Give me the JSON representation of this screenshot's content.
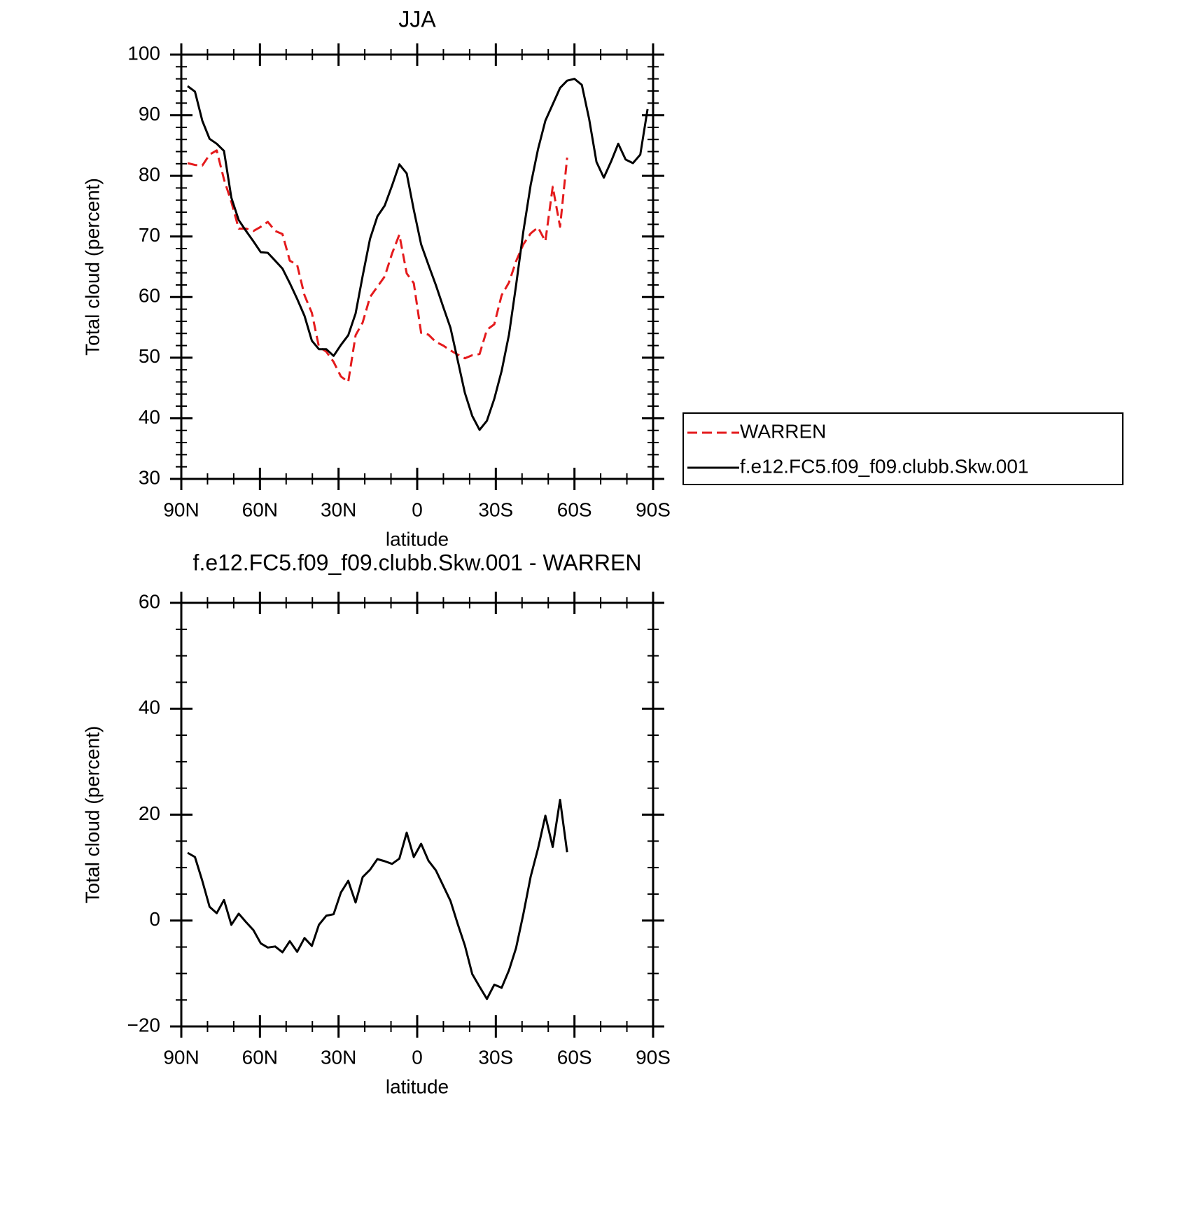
{
  "chart_data": [
    {
      "type": "line",
      "title": "JJA",
      "xlabel": "latitude",
      "ylabel": "Total cloud (percent)",
      "x": [
        87.6,
        84.8,
        82.0,
        79.2,
        76.5,
        73.7,
        70.9,
        68.1,
        65.3,
        62.5,
        59.7,
        57.0,
        54.2,
        51.4,
        48.6,
        45.8,
        43.0,
        40.2,
        37.5,
        34.7,
        31.9,
        29.1,
        26.3,
        23.5,
        20.8,
        18.0,
        15.2,
        12.4,
        9.6,
        6.8,
        4.0,
        1.3,
        -1.5,
        -4.3,
        -7.1,
        -9.9,
        -12.7,
        -15.5,
        -18.2,
        -21.0,
        -23.8,
        -26.6,
        -29.4,
        -32.2,
        -35.0,
        -37.7,
        -40.5,
        -43.3,
        -46.1,
        -48.9,
        -51.7,
        -54.5,
        -57.2,
        -60.0,
        -62.8,
        -65.6,
        -68.4,
        -71.2,
        -74.0,
        -76.7,
        -79.5,
        -82.3,
        -85.1,
        -87.9
      ],
      "series": [
        {
          "name": "WARREN",
          "color": "#e41a1c",
          "dash": true,
          "values": [
            82.1,
            81.8,
            81.7,
            83.5,
            84.2,
            79.4,
            75.7,
            71.3,
            71.3,
            70.9,
            71.6,
            72.4,
            70.9,
            70.4,
            66.0,
            65.3,
            60.3,
            57.4,
            51.8,
            51.0,
            49.3,
            46.9,
            46.0,
            53.7,
            55.8,
            60.0,
            61.7,
            63.4,
            67.2,
            70.3,
            63.9,
            62.3,
            54.1,
            53.8,
            52.6,
            52.0,
            51.2,
            50.5,
            49.9,
            50.4,
            50.6,
            54.6,
            55.5,
            60.3,
            62.4,
            65.9,
            68.7,
            70.5,
            71.5,
            69.2,
            78.2,
            71.6,
            83.0,
            null,
            null,
            null,
            null,
            null,
            null,
            null,
            null,
            null,
            null,
            null
          ]
        },
        {
          "name": "f.e12.FC5.f09_f09.clubb.Skw.001",
          "color": "#000000",
          "dash": false,
          "values": [
            94.8,
            93.9,
            89.1,
            86.1,
            85.3,
            84.1,
            76.4,
            72.7,
            70.9,
            69.2,
            67.4,
            67.3,
            66.0,
            64.7,
            62.3,
            59.7,
            56.9,
            52.8,
            51.4,
            51.4,
            50.3,
            52.1,
            53.7,
            57.3,
            63.5,
            69.6,
            73.3,
            75.1,
            78.4,
            81.9,
            80.4,
            74.4,
            68.7,
            65.3,
            62.0,
            58.4,
            54.9,
            49.5,
            44.2,
            40.4,
            38.1,
            39.6,
            43.2,
            47.8,
            53.8,
            61.9,
            70.8,
            78.5,
            84.4,
            89.1,
            91.8,
            94.5,
            95.7,
            96.0,
            95.0,
            89.4,
            82.3,
            79.7,
            82.4,
            85.3,
            82.7,
            82.1,
            83.5,
            91.0
          ]
        }
      ],
      "xlim": [
        90,
        -90
      ],
      "xticks": [
        {
          "value": 90,
          "label": "90N"
        },
        {
          "value": 60,
          "label": "60N"
        },
        {
          "value": 30,
          "label": "30N"
        },
        0,
        {
          "value": -30,
          "label": "30S"
        },
        {
          "value": -60,
          "label": "60S"
        },
        {
          "value": -90,
          "label": "90S"
        }
      ],
      "xminor": 3,
      "ylim": [
        30,
        100
      ],
      "yticks": [
        30,
        40,
        50,
        60,
        70,
        80,
        90,
        100
      ],
      "yminor": 5,
      "legend": "right"
    },
    {
      "type": "line",
      "title": "f.e12.FC5.f09_f09.clubb.Skw.001 - WARREN",
      "xlabel": "latitude",
      "ylabel": "Total cloud (percent)",
      "x": [
        87.6,
        84.8,
        82.0,
        79.2,
        76.5,
        73.7,
        70.9,
        68.1,
        65.3,
        62.5,
        59.7,
        57.0,
        54.2,
        51.4,
        48.6,
        45.8,
        43.0,
        40.2,
        37.5,
        34.7,
        31.9,
        29.1,
        26.3,
        23.5,
        20.8,
        18.0,
        15.2,
        12.4,
        9.6,
        6.8,
        4.0,
        1.3,
        -1.5,
        -4.3,
        -7.1,
        -9.9,
        -12.7,
        -15.5,
        -18.2,
        -21.0,
        -23.8,
        -26.6,
        -29.4,
        -32.2,
        -35.0,
        -37.7,
        -40.5,
        -43.3,
        -46.1,
        -48.9,
        -51.7,
        -54.5,
        -57.2,
        -60.0,
        -62.8,
        -65.6,
        -68.4,
        -71.2,
        -74.0,
        -76.7,
        -79.5,
        -82.3,
        -85.1,
        -87.9
      ],
      "series": [
        {
          "color": "#000000",
          "dash": false,
          "values": [
            12.8,
            12.0,
            7.5,
            2.6,
            1.4,
            3.9,
            -0.8,
            1.3,
            -0.3,
            -1.8,
            -4.3,
            -5.1,
            -4.9,
            -6.0,
            -3.9,
            -5.9,
            -3.3,
            -4.8,
            -0.8,
            0.9,
            1.2,
            5.3,
            7.5,
            3.4,
            8.2,
            9.6,
            11.6,
            11.2,
            10.7,
            11.7,
            16.6,
            12.0,
            14.5,
            11.3,
            9.5,
            6.6,
            3.7,
            -0.7,
            -4.7,
            -10.1,
            -12.5,
            -14.8,
            -12.1,
            -12.7,
            -9.4,
            -5.2,
            1.2,
            8.3,
            13.6,
            19.8,
            13.9,
            22.8,
            12.9,
            null,
            null,
            null,
            null,
            null,
            null,
            null,
            null,
            null,
            null,
            null
          ]
        }
      ],
      "xlim": [
        90,
        -90
      ],
      "xticks": [
        {
          "value": 90,
          "label": "90N"
        },
        {
          "value": 60,
          "label": "60N"
        },
        {
          "value": 30,
          "label": "30N"
        },
        0,
        {
          "value": -30,
          "label": "30S"
        },
        {
          "value": -60,
          "label": "60S"
        },
        {
          "value": -90,
          "label": "90S"
        }
      ],
      "xminor": 3,
      "ylim": [
        -20,
        60
      ],
      "yticks": [
        {
          "value": -20,
          "label": "−20"
        },
        0,
        20,
        40,
        60
      ],
      "yminor": 4
    }
  ]
}
